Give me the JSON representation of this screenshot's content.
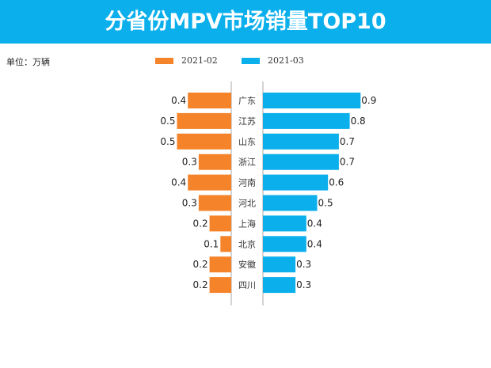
{
  "title": "分省份MPV市场销量TOP10",
  "unit_label": "单位：万辆",
  "colors": {
    "header": "#0AAFEC",
    "series_1": "#F5832A",
    "series_2": "#0AAFEC"
  },
  "chart_data": {
    "type": "bar",
    "orientation": "horizontal-butterfly",
    "categories": [
      "广东",
      "江苏",
      "山东",
      "浙江",
      "河南",
      "河北",
      "上海",
      "北京",
      "安徽",
      "四川"
    ],
    "series": [
      {
        "name": "2021-02",
        "values": [
          0.4,
          0.5,
          0.5,
          0.3,
          0.4,
          0.3,
          0.2,
          0.1,
          0.2,
          0.2
        ]
      },
      {
        "name": "2021-03",
        "values": [
          0.9,
          0.8,
          0.7,
          0.7,
          0.6,
          0.5,
          0.4,
          0.4,
          0.3,
          0.3
        ]
      }
    ],
    "legend": "top",
    "grid": false,
    "data_labels": true
  }
}
